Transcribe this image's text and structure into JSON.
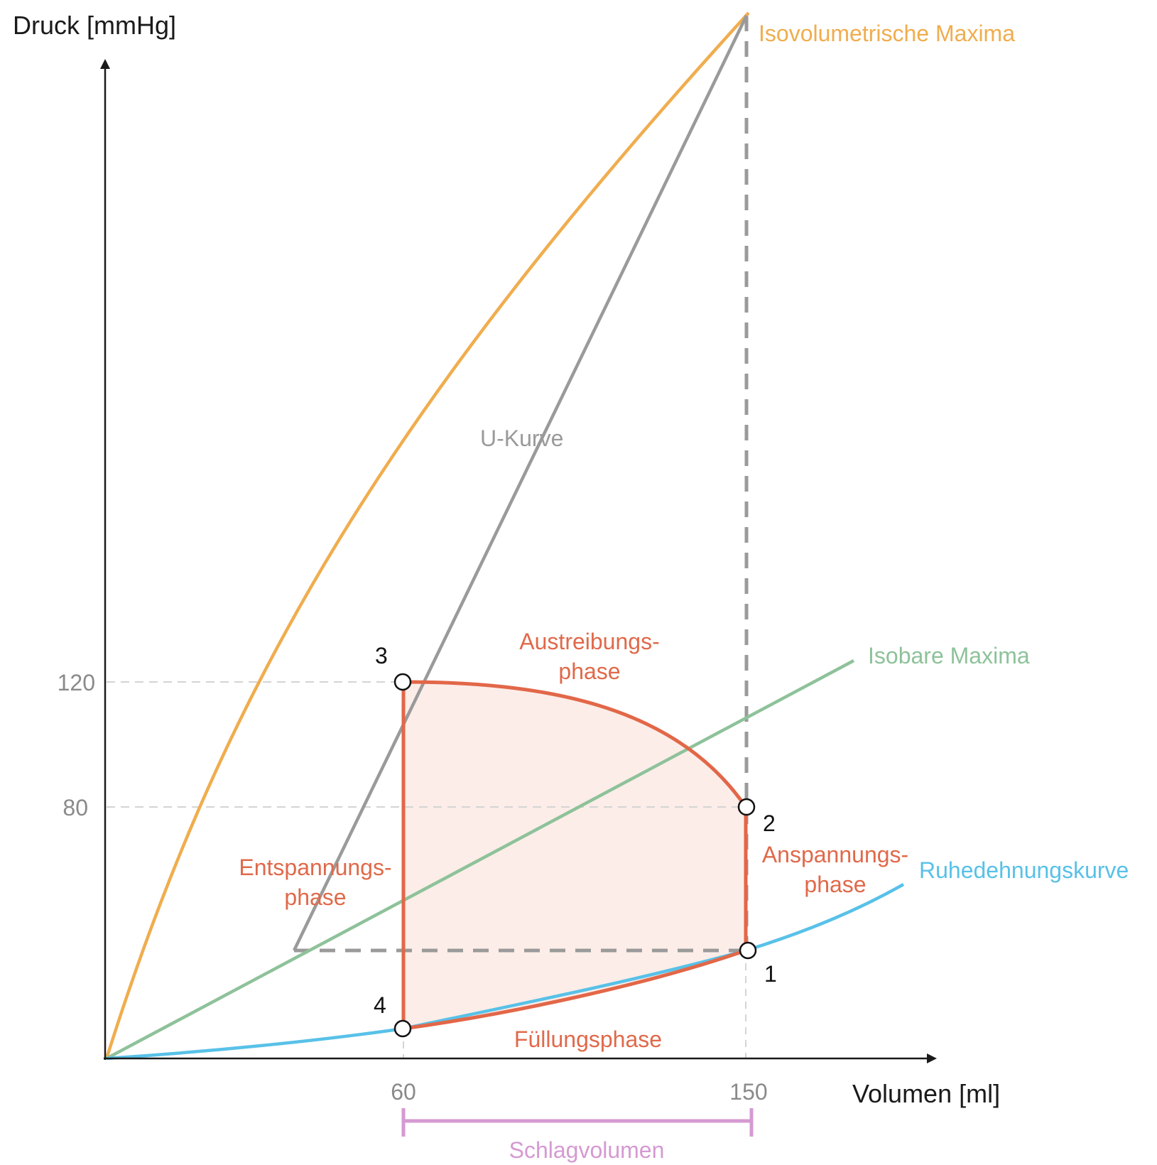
{
  "colors": {
    "orange": "#f0ad4e",
    "gray": "#9a9a9a",
    "green": "#8ec29a",
    "blue": "#58c1e8",
    "red": "#e26748",
    "fill": "#fbe6de",
    "purple": "#d59ad2",
    "axis": "#1a1a1a",
    "tick": "#8a8a8a"
  },
  "axes": {
    "y_title": "Druck [mmHg]",
    "x_title": "Volumen [ml]",
    "y_ticks": [
      "120",
      "80"
    ],
    "x_ticks": [
      "60",
      "150"
    ]
  },
  "curve_labels": {
    "isovolumetric": "Isovolumetrische Maxima",
    "u_curve": "U-Kurve",
    "isobaric": "Isobare Maxima",
    "resting": "Ruhedehnungskurve"
  },
  "phases": {
    "austreibung_1": "Austreibungs-",
    "austreibung_2": "phase",
    "entspannung_1": "Entspannungs-",
    "entspannung_2": "phase",
    "anspannung_1": "Anspannungs-",
    "anspannung_2": "phase",
    "fuellung": "Füllungsphase"
  },
  "points": {
    "p1": "1",
    "p2": "2",
    "p3": "3",
    "p4": "4"
  },
  "schlagvolumen": "Schlagvolumen"
}
